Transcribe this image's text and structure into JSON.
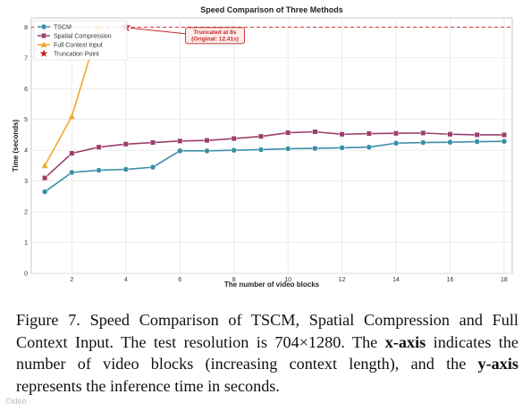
{
  "chart_data": {
    "type": "line",
    "title": "Speed Comparison of Three Methods",
    "xlabel": "The number of video blocks",
    "ylabel": "Time (seconds)",
    "xlim": [
      0.5,
      18.3
    ],
    "ylim": [
      0,
      8.3
    ],
    "xticks": [
      2,
      4,
      6,
      8,
      10,
      12,
      14,
      16,
      18
    ],
    "yticks": [
      0,
      1,
      2,
      3,
      4,
      5,
      6,
      7,
      8
    ],
    "grid": true,
    "legend_position": "top-left",
    "series": [
      {
        "name": "TSCM",
        "color": "#3a8ea8",
        "marker": "circle",
        "x": [
          1,
          2,
          3,
          4,
          5,
          6,
          7,
          8,
          9,
          10,
          11,
          12,
          13,
          14,
          15,
          16,
          17,
          18
        ],
        "y": [
          2.65,
          3.28,
          3.35,
          3.38,
          3.45,
          3.98,
          3.98,
          4.0,
          4.02,
          4.05,
          4.06,
          4.08,
          4.1,
          4.23,
          4.25,
          4.26,
          4.28,
          4.29
        ]
      },
      {
        "name": "Spatial Compression",
        "color": "#9b3f6b",
        "marker": "square",
        "x": [
          1,
          2,
          3,
          4,
          5,
          6,
          7,
          8,
          9,
          10,
          11,
          12,
          13,
          14,
          15,
          16,
          17,
          18
        ],
        "y": [
          3.1,
          3.9,
          4.1,
          4.2,
          4.25,
          4.3,
          4.32,
          4.38,
          4.45,
          4.57,
          4.6,
          4.52,
          4.54,
          4.55,
          4.56,
          4.52,
          4.5,
          4.5
        ]
      },
      {
        "name": "Full Context Input",
        "color": "#f0a92c",
        "marker": "triangle",
        "x": [
          1,
          2,
          3
        ],
        "y": [
          3.5,
          5.1,
          8.0
        ]
      }
    ],
    "reference_line": {
      "y": 8,
      "color": "#d32f2f",
      "style": "dashed"
    },
    "truncation_point": {
      "label": "Truncation Point",
      "x": 4,
      "y": 8,
      "color": "#c62828"
    },
    "annotation": {
      "lines": [
        "Truncated at 8s",
        "(Original: 12.41s)"
      ],
      "x": 7.3,
      "y": 7.9
    }
  },
  "caption": {
    "figure_label": "Figure 7.",
    "text_1": " Speed Comparison of TSCM, Spatial Compression and Full Context Input. The test resolution is 704×1280. The ",
    "xaxis_bold": "x-axis",
    "text_2": " indicates the number of video blocks (increasing context length), and the ",
    "yaxis_bold": "y-axis",
    "text_3": " represents the inference time in seconds."
  },
  "watermark": "©ideo"
}
